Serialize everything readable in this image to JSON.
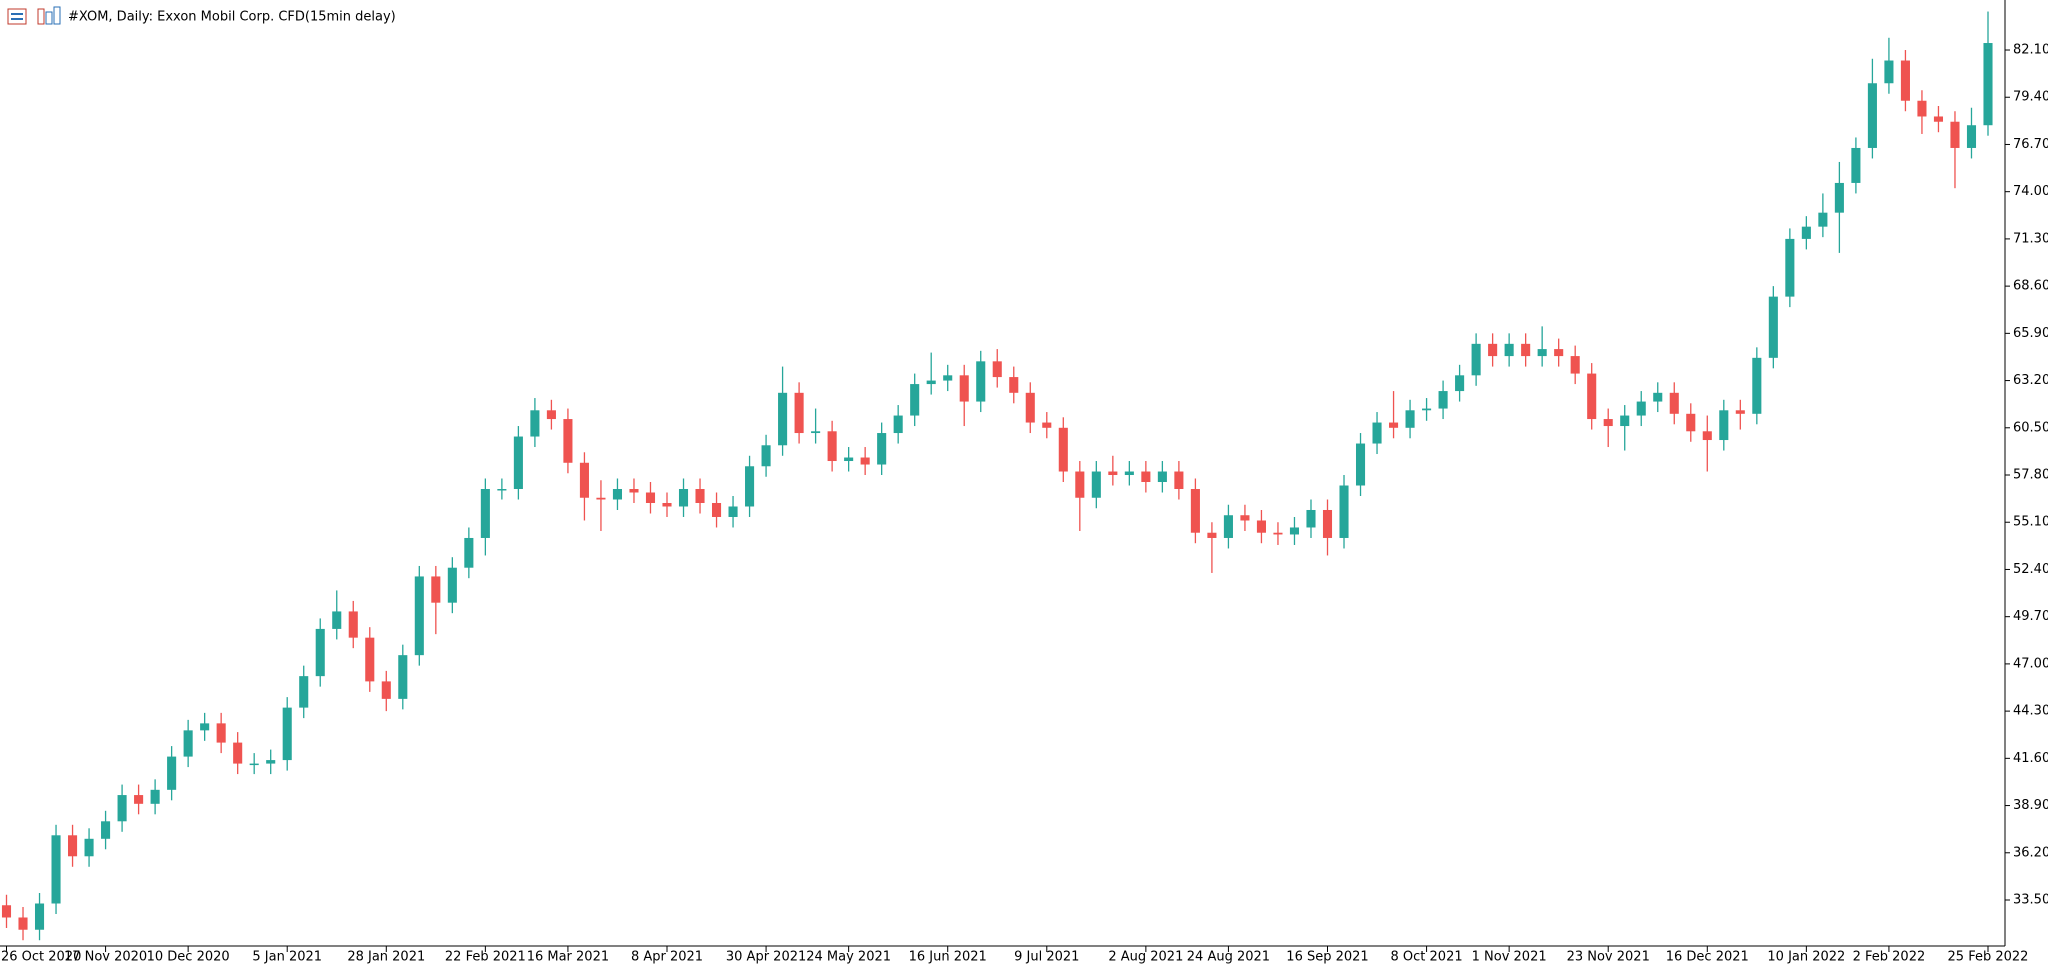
{
  "chart_data": {
    "type": "candlestick",
    "title": "#XOM, Daily:  Exxon Mobil Corp. CFD(15min delay)",
    "up_color": "#26a69a",
    "down_color": "#ef5350",
    "categories": [
      "26 Oct 2020",
      null,
      null,
      null,
      null,
      null,
      "17 Nov 2020",
      null,
      null,
      null,
      null,
      "10 Dec 2020",
      null,
      null,
      null,
      null,
      null,
      "5 Jan 2021",
      null,
      null,
      null,
      null,
      null,
      "28 Jan 2021",
      null,
      null,
      null,
      null,
      null,
      "22 Feb 2021",
      null,
      null,
      null,
      null,
      "16 Mar 2021",
      null,
      null,
      null,
      null,
      null,
      "8 Apr 2021",
      null,
      null,
      null,
      null,
      null,
      "30 Apr 2021",
      null,
      null,
      null,
      null,
      "24 May 2021",
      null,
      null,
      null,
      null,
      null,
      "16 Jun 2021",
      null,
      null,
      null,
      null,
      null,
      "9 Jul 2021",
      null,
      null,
      null,
      null,
      null,
      "2 Aug 2021",
      null,
      null,
      null,
      null,
      "24 Aug 2021",
      null,
      null,
      null,
      null,
      null,
      "16 Sep 2021",
      null,
      null,
      null,
      null,
      null,
      "8 Oct 2021",
      null,
      null,
      null,
      null,
      "1 Nov 2021",
      null,
      null,
      null,
      null,
      null,
      "23 Nov 2021",
      null,
      null,
      null,
      null,
      null,
      "16 Dec 2021",
      null,
      null,
      null,
      null,
      null,
      "10 Jan 2022",
      null,
      null,
      null,
      null,
      "2 Feb 2022",
      null,
      null,
      null,
      null,
      null,
      "25 Feb 2022"
    ],
    "open": [
      33.2,
      32.5,
      31.8,
      33.3,
      37.2,
      36,
      37,
      38,
      39.5,
      39,
      39.8,
      41.7,
      43.2,
      43.6,
      42.5,
      41.3,
      41.3,
      41.5,
      44.5,
      46.3,
      49,
      50,
      48.5,
      46,
      45,
      47.5,
      52,
      50.5,
      52.5,
      54.2,
      57,
      57,
      60,
      61.5,
      61,
      58.5,
      56.5,
      56.4,
      57,
      56.8,
      56.2,
      56,
      57,
      56.2,
      55.4,
      56,
      58.3,
      59.5,
      62.5,
      60.2,
      60.3,
      58.6,
      58.8,
      58.4,
      60.2,
      61.2,
      63,
      63.2,
      63.5,
      62,
      64.3,
      63.4,
      62.5,
      60.8,
      60.5,
      58,
      56.5,
      58,
      57.8,
      58,
      57.4,
      58,
      57,
      54.5,
      54.2,
      55.5,
      55.2,
      54.5,
      54.4,
      54.8,
      55.8,
      54.2,
      57.2,
      59.6,
      60.8,
      60.5,
      61.5,
      61.6,
      62.6,
      63.5,
      65.3,
      64.6,
      65.3,
      64.6,
      65,
      64.6,
      63.6,
      61,
      60.6,
      61.2,
      62,
      62.5,
      61.3,
      60.3,
      59.8,
      61.5,
      61.3,
      64.5,
      68,
      71.3,
      72,
      72.8,
      74.5,
      76.5,
      80.2,
      81.5,
      79.2,
      78.3,
      78,
      76.5,
      77.8
    ],
    "high": [
      33.8,
      33.1,
      33.9,
      37.8,
      37.8,
      37.6,
      38.6,
      40.1,
      40.1,
      40.4,
      42.3,
      43.8,
      44.2,
      44.2,
      43.1,
      41.9,
      42.1,
      45.1,
      46.9,
      49.6,
      51.2,
      50.6,
      49.1,
      46.6,
      48.1,
      52.6,
      52.6,
      53.1,
      54.8,
      57.6,
      57.6,
      60.6,
      62.2,
      62.1,
      61.6,
      59.1,
      57.5,
      57.6,
      57.6,
      57.4,
      56.8,
      57.6,
      57.6,
      56.8,
      56.6,
      58.9,
      60.1,
      64,
      63.1,
      61.6,
      60.9,
      59.4,
      59.4,
      60.8,
      61.8,
      63.6,
      64.8,
      64.1,
      64.1,
      64.9,
      65,
      64,
      63.1,
      61.4,
      61.1,
      58.6,
      58.6,
      58.9,
      58.6,
      58.6,
      58.6,
      58.6,
      57.6,
      55.1,
      56.1,
      56.1,
      55.8,
      55.1,
      55.4,
      56.4,
      56.4,
      57.8,
      60.2,
      61.4,
      62.6,
      62.1,
      62.2,
      63.2,
      64.1,
      65.9,
      65.9,
      65.9,
      65.9,
      66.3,
      65.6,
      65.2,
      64.2,
      61.6,
      61.8,
      62.6,
      63.1,
      63.1,
      61.9,
      61.2,
      62.1,
      62.1,
      65.1,
      68.6,
      71.9,
      72.6,
      73.9,
      75.7,
      77.1,
      81.6,
      82.8,
      82.1,
      79.8,
      78.9,
      78.6,
      78.8,
      84.3
    ],
    "low": [
      31.9,
      31.2,
      31.2,
      32.7,
      35.4,
      35.4,
      36.4,
      37.4,
      38.4,
      38.4,
      39.2,
      41.1,
      42.6,
      41.9,
      40.7,
      40.7,
      40.7,
      40.9,
      43.9,
      45.7,
      48.4,
      47.9,
      45.4,
      44.3,
      44.4,
      46.9,
      48.7,
      49.9,
      51.9,
      53.2,
      56.4,
      56.4,
      59.4,
      60.4,
      57.9,
      55.2,
      54.6,
      55.8,
      56.2,
      55.6,
      55.4,
      55.4,
      55.6,
      54.8,
      54.8,
      55.4,
      57.7,
      58.9,
      59.6,
      59.6,
      58,
      58,
      57.8,
      57.8,
      59.6,
      60.6,
      62.4,
      62.6,
      60.6,
      61.4,
      62.8,
      61.9,
      60.2,
      59.9,
      57.4,
      54.6,
      55.9,
      57.2,
      57.2,
      56.8,
      56.8,
      56.4,
      53.9,
      52.2,
      53.6,
      54.6,
      53.9,
      53.8,
      53.8,
      54.2,
      53.2,
      53.6,
      56.6,
      59,
      59.9,
      59.9,
      60.9,
      61,
      62,
      62.9,
      64,
      64,
      64,
      64,
      64,
      63,
      60.4,
      59.4,
      59.2,
      60.6,
      61.4,
      60.7,
      59.7,
      58,
      59.2,
      60.4,
      60.7,
      63.9,
      67.4,
      70.7,
      71.4,
      70.5,
      73.9,
      75.9,
      79.6,
      78.6,
      77.3,
      77.4,
      74.2,
      75.9,
      77.2
    ],
    "close": [
      32.5,
      31.8,
      33.3,
      37.2,
      36,
      37,
      38,
      39.5,
      39,
      39.8,
      41.7,
      43.2,
      43.6,
      42.5,
      41.3,
      41.3,
      41.5,
      44.5,
      46.3,
      49,
      50,
      48.5,
      46,
      45,
      47.5,
      52,
      50.5,
      52.5,
      54.2,
      57,
      57,
      60,
      61.5,
      61,
      58.5,
      56.5,
      56.4,
      57,
      56.8,
      56.2,
      56,
      57,
      56.2,
      55.4,
      56,
      58.3,
      59.5,
      62.5,
      60.2,
      60.3,
      58.6,
      58.8,
      58.4,
      60.2,
      61.2,
      63,
      63.2,
      63.5,
      62,
      64.3,
      63.4,
      62.5,
      60.8,
      60.5,
      58,
      56.5,
      58,
      57.8,
      58,
      57.4,
      58,
      57,
      54.5,
      54.2,
      55.5,
      55.2,
      54.5,
      54.4,
      54.8,
      55.8,
      54.2,
      57.2,
      59.6,
      60.8,
      60.5,
      61.5,
      61.6,
      62.6,
      63.5,
      65.3,
      64.6,
      65.3,
      64.6,
      65,
      64.6,
      63.6,
      61,
      60.6,
      61.2,
      62,
      62.5,
      61.3,
      60.3,
      59.8,
      61.5,
      61.3,
      64.5,
      68,
      71.3,
      72,
      72.8,
      74.5,
      76.5,
      80.2,
      81.5,
      79.2,
      78.3,
      78,
      76.5,
      77.8,
      82.5
    ],
    "ylim": [
      30.87,
      84.96
    ],
    "yticks": [
      {
        "value": 33.5,
        "label": "33.50"
      },
      {
        "value": 36.2,
        "label": "36.20"
      },
      {
        "value": 38.9,
        "label": "38.90"
      },
      {
        "value": 41.6,
        "label": "41.60"
      },
      {
        "value": 44.3,
        "label": "44.30"
      },
      {
        "value": 47,
        "label": "47.00"
      },
      {
        "value": 49.7,
        "label": "49.70"
      },
      {
        "value": 52.4,
        "label": "52.40"
      },
      {
        "value": 55.1,
        "label": "55.10"
      },
      {
        "value": 57.8,
        "label": "57.80"
      },
      {
        "value": 60.5,
        "label": "60.50"
      },
      {
        "value": 63.2,
        "label": "63.20"
      },
      {
        "value": 65.9,
        "label": "65.90"
      },
      {
        "value": 68.6,
        "label": "68.60"
      },
      {
        "value": 71.3,
        "label": "71.30"
      },
      {
        "value": 74,
        "label": "74.00"
      },
      {
        "value": 76.7,
        "label": "76.70"
      },
      {
        "value": 79.4,
        "label": "79.40"
      },
      {
        "value": 82.1,
        "label": "82.10"
      }
    ],
    "grid": false
  }
}
